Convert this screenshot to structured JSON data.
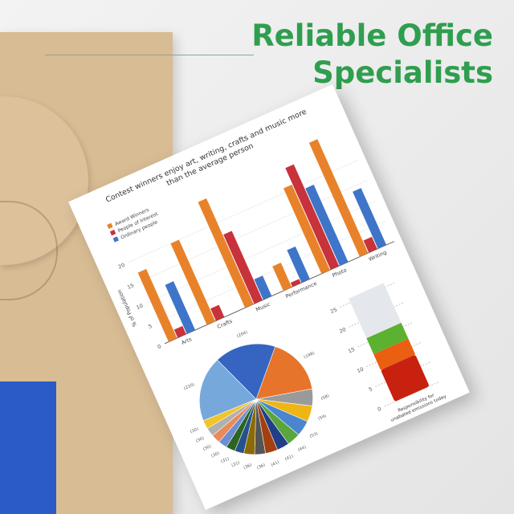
{
  "headline": {
    "line1": "Reliable Office",
    "line2": "Specialists",
    "color": "#2f9e4f"
  },
  "chart_data": [
    {
      "type": "bar",
      "title": "Contest winners enjoy art, writing, crafts and music more than the average person",
      "title_lines": [
        "Contest winners enjoy art, writing, crafts and music more",
        "than the average person"
      ],
      "ylabel": "% of Population",
      "ylim": [
        0,
        28
      ],
      "yticks": [
        "0",
        "5",
        "10",
        "15",
        "20"
      ],
      "categories": [
        "Arts",
        "Crafts",
        "Music",
        "Performance",
        "Photo",
        "Writing"
      ],
      "legend_position": "top-left",
      "grid": true,
      "series": [
        {
          "name": "Award Winners",
          "color": "#e8822a",
          "values": [
            17,
            20,
            26,
            6,
            21,
            28
          ]
        },
        {
          "name": "People of Interest",
          "color": "#c8323a",
          "values": [
            2,
            3,
            17,
            1,
            25,
            3
          ]
        },
        {
          "name": "Ordinary people",
          "color": "#3f75c8",
          "values": [
            12,
            0,
            5,
            8,
            19,
            14
          ]
        }
      ]
    },
    {
      "type": "pie",
      "labels": [
        "(204)",
        "(198)",
        "(58)",
        "(54)",
        "(53)",
        "(44)",
        "(41)",
        "(41)",
        "(36)",
        "(36)",
        "(31)",
        "(31)",
        "(30)",
        "(30)",
        "(30)",
        "(30)",
        "(220)"
      ],
      "values": [
        204,
        198,
        58,
        54,
        53,
        44,
        41,
        41,
        36,
        36,
        31,
        31,
        30,
        30,
        30,
        30,
        220
      ],
      "colors": [
        "#3565c0",
        "#e6742a",
        "#9a9a9a",
        "#eeb515",
        "#4a86cf",
        "#5aa53d",
        "#203f86",
        "#a3400f",
        "#555555",
        "#8a6a05",
        "#23528f",
        "#2c6422",
        "#6b8fd0",
        "#e88a5a",
        "#b0b0b0",
        "#f0c52a",
        "#77a8dc"
      ]
    },
    {
      "type": "bar",
      "stacked": true,
      "xlabel_lines": [
        "Responsibility for",
        "unabated emissions today"
      ],
      "ylim": [
        0,
        27
      ],
      "yticks": [
        "0",
        "5",
        "10",
        "15",
        "20",
        "25"
      ],
      "segments": [
        {
          "value": 8,
          "color": "#c8210f"
        },
        {
          "value": 4,
          "color": "#ea5f12"
        },
        {
          "value": 4,
          "color": "#5cb130"
        },
        {
          "value": 10,
          "color": "#e4e8ec"
        }
      ]
    }
  ]
}
